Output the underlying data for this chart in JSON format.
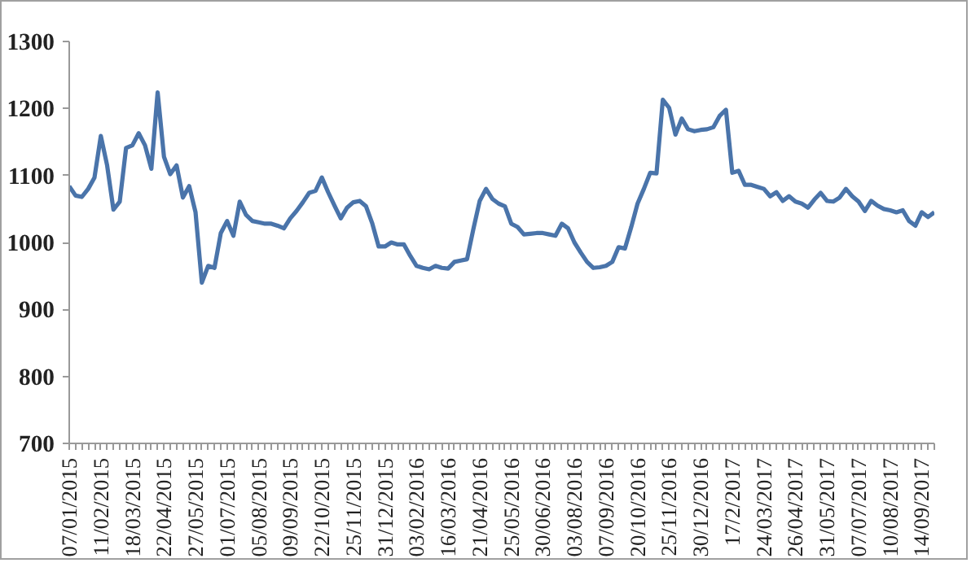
{
  "chart_data": {
    "type": "line",
    "categories": [
      "07/01/2015",
      null,
      null,
      null,
      null,
      "11/02/2015",
      null,
      null,
      null,
      null,
      "18/03/2015",
      null,
      null,
      null,
      null,
      "22/04/2015",
      null,
      null,
      null,
      null,
      "27/05/2015",
      null,
      null,
      null,
      null,
      "01/07/2015",
      null,
      null,
      null,
      null,
      "05/08/2015",
      null,
      null,
      null,
      null,
      "09/09/2015",
      null,
      null,
      null,
      null,
      "22/10/2015",
      null,
      null,
      null,
      null,
      "25/11/2015",
      null,
      null,
      null,
      null,
      "31/12/2015",
      null,
      null,
      null,
      null,
      "03/02/2016",
      null,
      null,
      null,
      null,
      "16/03/2016",
      null,
      null,
      null,
      null,
      "21/04/2016",
      null,
      null,
      null,
      null,
      "25/05/2016",
      null,
      null,
      null,
      null,
      "30/06/2016",
      null,
      null,
      null,
      null,
      "03/08/2016",
      null,
      null,
      null,
      null,
      "07/09/2016",
      null,
      null,
      null,
      null,
      "20/10/2016",
      null,
      null,
      null,
      null,
      "25/11/2016",
      null,
      null,
      null,
      null,
      "30/12/2016",
      null,
      null,
      null,
      null,
      "17/2/2017",
      null,
      null,
      null,
      null,
      "24/03/2017",
      null,
      null,
      null,
      null,
      "26/04/2017",
      null,
      null,
      null,
      null,
      "31/05/2017",
      null,
      null,
      null,
      null,
      "07/07/2017",
      null,
      null,
      null,
      null,
      "10/08/2017",
      null,
      null,
      null,
      null,
      "14/09/2017",
      null,
      null
    ],
    "series": [
      {
        "color": "#4a74aa",
        "values": [
          1084,
          1070,
          1068,
          1080,
          1097,
          1159,
          1115,
          1049,
          1061,
          1141,
          1145,
          1163,
          1145,
          1110,
          1224,
          1128,
          1102,
          1115,
          1067,
          1084,
          1045,
          940,
          965,
          962,
          1014,
          1032,
          1010,
          1061,
          1041,
          1032,
          1030,
          1028,
          1028,
          1025,
          1021,
          1036,
          1047,
          1060,
          1074,
          1077,
          1097,
          1075,
          1055,
          1036,
          1052,
          1060,
          1062,
          1054,
          1028,
          994,
          994,
          1000,
          997,
          997,
          980,
          965,
          962,
          960,
          965,
          962,
          961,
          971,
          973,
          975,
          1020,
          1062,
          1080,
          1065,
          1058,
          1054,
          1028,
          1023,
          1012,
          1013,
          1014,
          1014,
          1012,
          1010,
          1028,
          1021,
          1000,
          985,
          971,
          962,
          963,
          965,
          971,
          993,
          991,
          1023,
          1058,
          1080,
          1104,
          1103,
          1213,
          1201,
          1161,
          1185,
          1169,
          1166,
          1168,
          1169,
          1172,
          1189,
          1198,
          1104,
          1107,
          1086,
          1086,
          1083,
          1080,
          1069,
          1075,
          1062,
          1069,
          1061,
          1058,
          1052,
          1064,
          1074,
          1062,
          1061,
          1067,
          1080,
          1069,
          1061,
          1047,
          1062,
          1055,
          1050,
          1048,
          1045,
          1048,
          1032,
          1025,
          1045,
          1038,
          1045
        ]
      }
    ],
    "ylim": [
      700,
      1300
    ],
    "yticks": [
      700,
      800,
      900,
      1000,
      1100,
      1200,
      1300
    ]
  }
}
